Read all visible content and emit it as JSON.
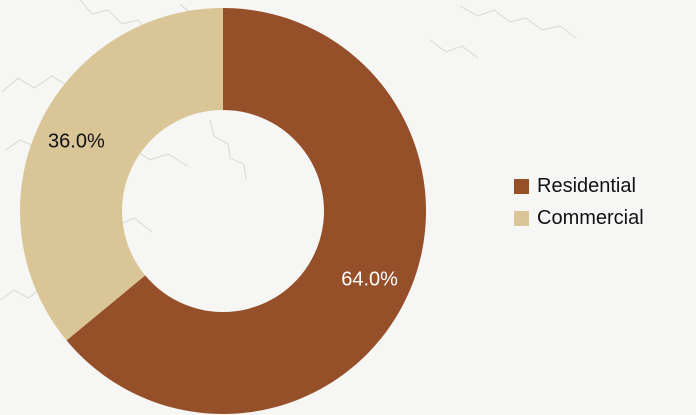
{
  "chart_data": {
    "type": "pie",
    "variant": "donut",
    "slices": [
      {
        "label": "Residential",
        "value": 64.0,
        "display": "64.0%",
        "color": "#954f29",
        "label_color": "#ffffff"
      },
      {
        "label": "Commercial",
        "value": 36.0,
        "display": "36.0%",
        "color": "#d9c596",
        "label_color": "#111111"
      }
    ],
    "legend": {
      "placement": "right",
      "entries": [
        "Residential",
        "Commercial"
      ]
    }
  }
}
